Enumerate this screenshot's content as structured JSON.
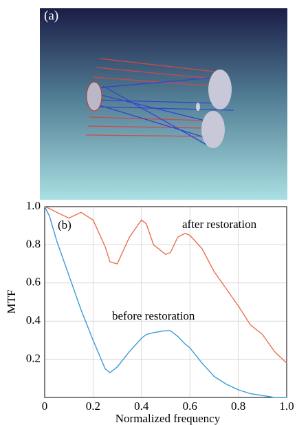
{
  "image_panel": {
    "label": "(a)"
  },
  "chart_data": {
    "type": "line",
    "annotations": [
      "(b)"
    ],
    "x_label": "Normalized frequency",
    "y_label": "MTF",
    "x": [
      0,
      0.02,
      0.05,
      0.1,
      0.15,
      0.2,
      0.25,
      0.27,
      0.3,
      0.35,
      0.4,
      0.42,
      0.45,
      0.5,
      0.52,
      0.55,
      0.58,
      0.6,
      0.65,
      0.7,
      0.75,
      0.8,
      0.85,
      0.9,
      0.95,
      1.0
    ],
    "series": [
      {
        "name": "after restoration",
        "color": "#e8704f",
        "values": [
          1.0,
          0.99,
          0.97,
          0.94,
          0.97,
          0.93,
          0.79,
          0.71,
          0.7,
          0.84,
          0.93,
          0.91,
          0.8,
          0.75,
          0.76,
          0.84,
          0.86,
          0.85,
          0.78,
          0.66,
          0.57,
          0.48,
          0.38,
          0.33,
          0.24,
          0.18
        ]
      },
      {
        "name": "before restoration",
        "color": "#3a9ad9",
        "values": [
          1.0,
          0.95,
          0.82,
          0.64,
          0.46,
          0.3,
          0.15,
          0.13,
          0.16,
          0.24,
          0.31,
          0.33,
          0.34,
          0.35,
          0.35,
          0.32,
          0.28,
          0.26,
          0.18,
          0.11,
          0.07,
          0.04,
          0.02,
          0.01,
          0.0,
          0.0
        ]
      }
    ],
    "xlim": [
      0,
      1
    ],
    "ylim": [
      0,
      1
    ],
    "xticks": [
      0,
      0.2,
      0.4,
      0.6,
      0.8,
      {
        "value": 1,
        "label": "1.0"
      }
    ],
    "yticks": [
      0.2,
      0.4,
      0.6,
      0.8,
      {
        "value": 1,
        "label": "1.0"
      }
    ],
    "grid": true
  }
}
